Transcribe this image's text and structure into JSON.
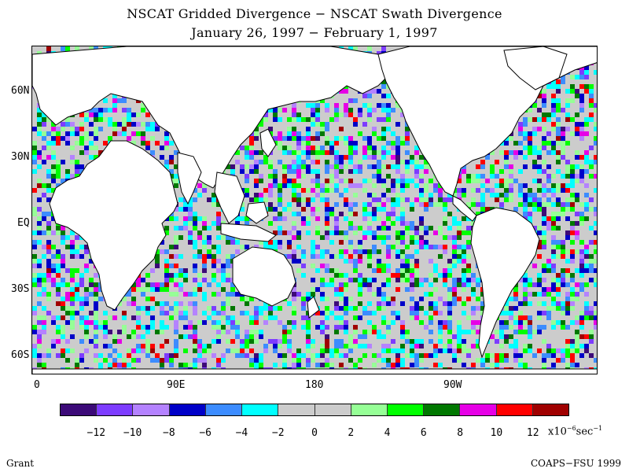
{
  "title": "NSCAT Gridded Divergence − NSCAT Swath Divergence",
  "subtitle": "January 26, 1997 − February 1, 1997",
  "lat_labels": [
    "60N",
    "30N",
    "EQ",
    "30S",
    "60S"
  ],
  "lon_labels": [
    "0",
    "90E",
    "180",
    "90W"
  ],
  "colorbar": {
    "colors": [
      "#3c0a78",
      "#7d3cff",
      "#b482ff",
      "#0000c8",
      "#3c8cff",
      "#00ffff",
      "#cccccc",
      "#cccccc",
      "#96ff96",
      "#00ff00",
      "#007800",
      "#e600e6",
      "#ff0000",
      "#a00000"
    ],
    "tick_labels": [
      "−12",
      "−10",
      "−8",
      "−6",
      "−4",
      "−2",
      "0",
      "2",
      "4",
      "6",
      "8",
      "10",
      "12"
    ],
    "units_prefix": "x10",
    "units_exp": "−6",
    "units_suffix": "sec",
    "units_exp2": "−1"
  },
  "author": "Grant",
  "credit": "COAPS−FSU 1999"
}
